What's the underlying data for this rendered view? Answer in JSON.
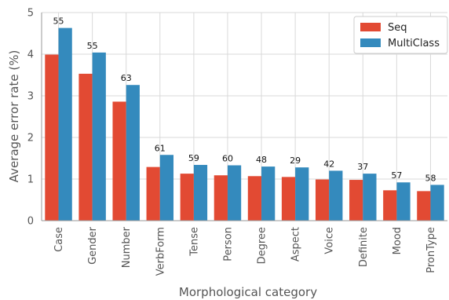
{
  "chart_data": {
    "type": "bar",
    "title": "",
    "xlabel": "Morphological category",
    "ylabel": "Average error rate (%)",
    "categories": [
      "Case",
      "Gender",
      "Number",
      "VerbForm",
      "Tense",
      "Person",
      "Degree",
      "Aspect",
      "Voice",
      "Definite",
      "Mood",
      "PronType"
    ],
    "series": [
      {
        "name": "Seq",
        "color": "#E24A33",
        "values": [
          3.99,
          3.53,
          2.86,
          1.29,
          1.13,
          1.09,
          1.07,
          1.05,
          0.99,
          0.98,
          0.73,
          0.71
        ]
      },
      {
        "name": "MultiClass",
        "color": "#348ABD",
        "values": [
          4.63,
          4.04,
          3.26,
          1.58,
          1.34,
          1.33,
          1.3,
          1.28,
          1.2,
          1.13,
          0.92,
          0.86
        ]
      }
    ],
    "annotations": [
      "55",
      "55",
      "63",
      "61",
      "59",
      "60",
      "48",
      "29",
      "42",
      "37",
      "57",
      "58"
    ],
    "ylim": [
      0,
      5
    ],
    "yticks": [
      "0",
      "1",
      "2",
      "3",
      "4",
      "5"
    ],
    "grid": true,
    "legend_position": "top-right"
  }
}
